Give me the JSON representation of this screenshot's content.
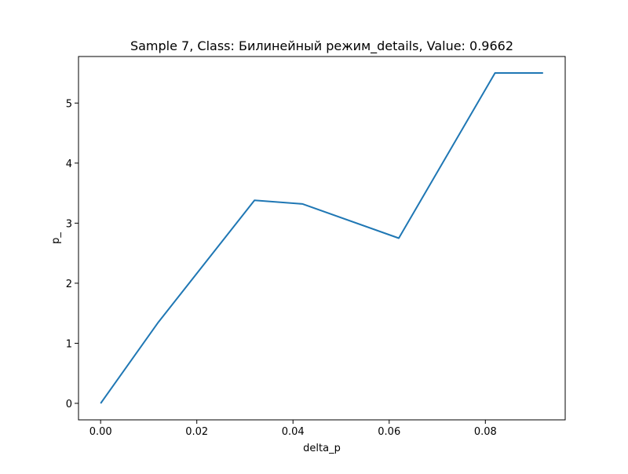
{
  "chart_data": {
    "type": "line",
    "title": "Sample 7, Class: Билинейный режим_details, Value: 0.9662",
    "xlabel": "delta_p",
    "ylabel": "p_",
    "xlim": [
      -0.0046,
      0.0966
    ],
    "ylim": [
      -0.275,
      5.775
    ],
    "x_ticks": [
      0.0,
      0.02,
      0.04,
      0.06,
      0.08
    ],
    "x_tick_labels": [
      "0.00",
      "0.02",
      "0.04",
      "0.06",
      "0.08"
    ],
    "y_ticks": [
      0,
      1,
      2,
      3,
      4,
      5
    ],
    "y_tick_labels": [
      "0",
      "1",
      "2",
      "3",
      "4",
      "5"
    ],
    "grid": false,
    "legend": "none",
    "series": [
      {
        "color": "#1f77b4",
        "x": [
          0.0,
          0.012,
          0.032,
          0.042,
          0.062,
          0.082,
          0.092
        ],
        "y": [
          0.0,
          1.35,
          3.38,
          3.32,
          2.75,
          5.5,
          5.5
        ]
      }
    ]
  }
}
